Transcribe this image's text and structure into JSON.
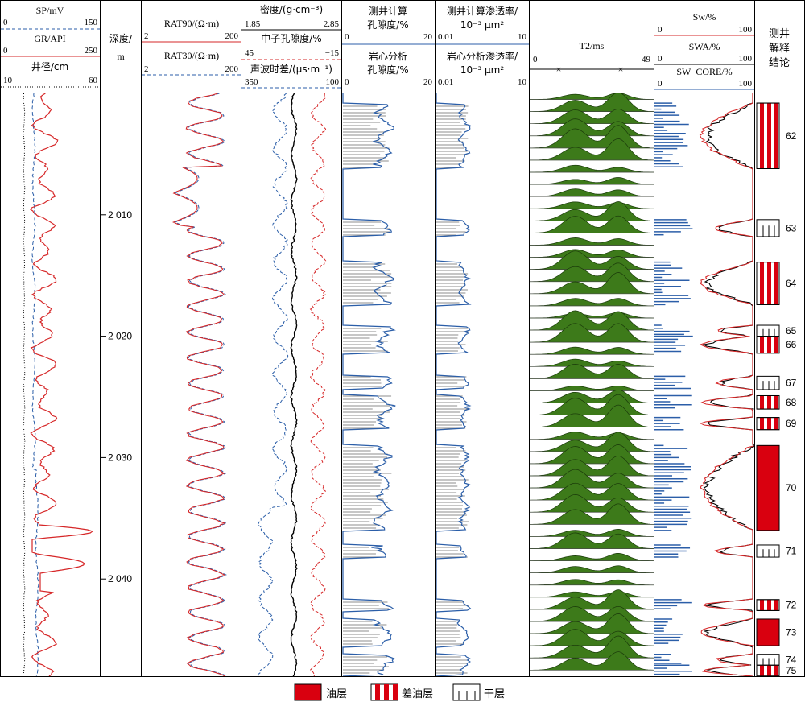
{
  "chart_data": {
    "type": "well-log",
    "depth_axis": {
      "label": "深度/\nm",
      "range": [
        2000,
        2048
      ],
      "ticks": [
        2010,
        2020,
        2030,
        2040
      ],
      "tick_labels": [
        "2 010",
        "2 020",
        "2 030",
        "2 040"
      ]
    },
    "tracks": [
      {
        "id": "t1",
        "curves": [
          {
            "name": "SP/mV",
            "min": "0",
            "max": "150",
            "color": "#2b5ea8",
            "style": "dashed"
          },
          {
            "name": "GR/API",
            "min": "0",
            "max": "250",
            "color": "#d62728",
            "style": "solid"
          },
          {
            "name": "井径/cm",
            "min": "10",
            "max": "60",
            "color": "#000000",
            "style": "dotted"
          }
        ]
      },
      {
        "id": "t2",
        "curves": [
          {
            "name": "RAT90/(Ω·m)",
            "min": "2",
            "max": "200",
            "color": "#d62728",
            "style": "solid"
          },
          {
            "name": "RAT30/(Ω·m)",
            "min": "2",
            "max": "200",
            "color": "#2b5ea8",
            "style": "dashed"
          }
        ]
      },
      {
        "id": "t3",
        "curves": [
          {
            "name": "密度/(g·cm⁻³)",
            "min": "1.85",
            "max": "2.85",
            "color": "#000000",
            "style": "solid"
          },
          {
            "name": "中子孔隙度/%",
            "min": "45",
            "max": "−15",
            "color": "#d62728",
            "style": "dashed"
          },
          {
            "name": "声波时差/(μs·m⁻¹)",
            "min": "350",
            "max": "100",
            "color": "#2b5ea8",
            "style": "dashed"
          }
        ]
      },
      {
        "id": "t4",
        "curves": [
          {
            "name": "测井计算\n孔隙度/%",
            "min": "0",
            "max": "20",
            "color": "#2b5ea8"
          },
          {
            "name": "岩心分析\n孔隙度/%",
            "min": "0",
            "max": "20",
            "color": "#888888"
          }
        ]
      },
      {
        "id": "t5",
        "curves": [
          {
            "name": "测井计算渗透率/\n10⁻³ μm²",
            "min": "0.01",
            "max": "10",
            "color": "#2b5ea8"
          },
          {
            "name": "岩心分析渗透率/\n10⁻³ μm²",
            "min": "0.01",
            "max": "10",
            "color": "#888888"
          }
        ]
      },
      {
        "id": "t6",
        "curves": [
          {
            "name": "T2/ms",
            "min": "0",
            "max": "49",
            "color": "#3d7a1a"
          }
        ]
      },
      {
        "id": "t7",
        "curves": [
          {
            "name": "Sw/%",
            "min": "0",
            "max": "100",
            "color": "#d62728"
          },
          {
            "name": "SWA/%",
            "min": "0",
            "max": "100",
            "color": "#000000"
          },
          {
            "name": "SW_CORE/%",
            "min": "0",
            "max": "100",
            "color": "#2b5ea8"
          }
        ]
      }
    ],
    "conclusion_header": "测井\n解释\n结论",
    "layers": [
      {
        "num": "62",
        "top": 2000.8,
        "bottom": 2006.2,
        "type": "差油层"
      },
      {
        "num": "63",
        "top": 2010.4,
        "bottom": 2011.8,
        "type": "干层"
      },
      {
        "num": "64",
        "top": 2013.9,
        "bottom": 2017.4,
        "type": "差油层"
      },
      {
        "num": "65",
        "top": 2019.1,
        "bottom": 2020.0,
        "type": "干层"
      },
      {
        "num": "66",
        "top": 2020.0,
        "bottom": 2021.4,
        "type": "差油层"
      },
      {
        "num": "67",
        "top": 2023.3,
        "bottom": 2024.4,
        "type": "干层"
      },
      {
        "num": "68",
        "top": 2024.9,
        "bottom": 2026.0,
        "type": "差油层"
      },
      {
        "num": "69",
        "top": 2026.7,
        "bottom": 2027.7,
        "type": "差油层"
      },
      {
        "num": "70",
        "top": 2029.0,
        "bottom": 2036.0,
        "type": "油层"
      },
      {
        "num": "71",
        "top": 2037.2,
        "bottom": 2038.2,
        "type": "干层"
      },
      {
        "num": "72",
        "top": 2041.7,
        "bottom": 2042.6,
        "type": "差油层"
      },
      {
        "num": "73",
        "top": 2043.3,
        "bottom": 2045.5,
        "type": "油层"
      },
      {
        "num": "74",
        "top": 2046.2,
        "bottom": 2047.1,
        "type": "干层"
      },
      {
        "num": "75",
        "top": 2047.1,
        "bottom": 2048.0,
        "type": "差油层"
      }
    ],
    "porosity_intervals": [
      [
        2000.8,
        2006.2
      ],
      [
        2010.4,
        2011.8
      ],
      [
        2013.9,
        2017.4
      ],
      [
        2019.1,
        2021.4
      ],
      [
        2023.3,
        2024.4
      ],
      [
        2024.9,
        2027.7
      ],
      [
        2029.0,
        2036.0
      ],
      [
        2037.2,
        2038.2
      ],
      [
        2041.7,
        2042.6
      ],
      [
        2043.3,
        2045.5
      ],
      [
        2046.2,
        2048.0
      ]
    ],
    "t2_spectrum": {
      "peak_positions_ms": [
        18,
        35
      ],
      "spacing_m": 1.0
    },
    "legend": [
      {
        "type": "油层",
        "label": "油层"
      },
      {
        "type": "差油层",
        "label": "差油层"
      },
      {
        "type": "干层",
        "label": "干层"
      }
    ]
  },
  "header": {
    "sp": "SP/mV",
    "sp_min": "0",
    "sp_max": "150",
    "gr": "GR/API",
    "gr_min": "0",
    "gr_max": "250",
    "cal": "井径/cm",
    "cal_min": "10",
    "cal_max": "60",
    "depth1": "深度/",
    "depth2": "m",
    "rat90": "RAT90/(Ω·m)",
    "rat90_min": "2",
    "rat90_max": "200",
    "rat30": "RAT30/(Ω·m)",
    "rat30_min": "2",
    "rat30_max": "200",
    "den": "密度/(g·cm⁻³)",
    "den_min": "1.85",
    "den_max": "2.85",
    "cnl": "中子孔隙度/%",
    "cnl_min": "45",
    "cnl_max": "−15",
    "ac": "声波时差/(μs·m⁻¹)",
    "ac_min": "350",
    "ac_max": "100",
    "por1a": "测井计算",
    "por1b": "孔隙度/%",
    "por1_min": "0",
    "por1_max": "20",
    "por2a": "岩心分析",
    "por2b": "孔隙度/%",
    "por2_min": "0",
    "por2_max": "20",
    "perm1a": "测井计算渗透率/",
    "perm1b": "10⁻³ μm²",
    "perm1_min": "0.01",
    "perm1_max": "10",
    "perm2a": "岩心分析渗透率/",
    "perm2b": "10⁻³ μm²",
    "perm2_min": "0.01",
    "perm2_max": "10",
    "t2": "T2/ms",
    "t2_min": "0",
    "t2_max": "49",
    "sw": "Sw/%",
    "sw_min": "0",
    "sw_max": "100",
    "swa": "SWA/%",
    "swa_min": "0",
    "swa_max": "100",
    "swc": "SW_CORE/%",
    "swc_min": "0",
    "swc_max": "100",
    "concl1": "测井",
    "concl2": "解释",
    "concl3": "结论"
  },
  "legend": {
    "oil": "油层",
    "poor": "差油层",
    "dry": "干层"
  }
}
